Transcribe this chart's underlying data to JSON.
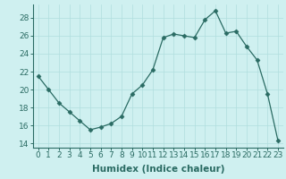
{
  "x": [
    0,
    1,
    2,
    3,
    4,
    5,
    6,
    7,
    8,
    9,
    10,
    11,
    12,
    13,
    14,
    15,
    16,
    17,
    18,
    19,
    20,
    21,
    22,
    23
  ],
  "y": [
    21.5,
    20.0,
    18.5,
    17.5,
    16.5,
    15.5,
    15.8,
    16.2,
    17.0,
    19.5,
    20.5,
    22.2,
    25.8,
    26.2,
    26.0,
    25.8,
    27.8,
    28.8,
    26.3,
    26.5,
    24.8,
    23.3,
    19.5,
    14.3
  ],
  "line_color": "#2a6b63",
  "marker": "D",
  "marker_size": 2.5,
  "bg_color": "#cff0f0",
  "grid_color": "#b0dede",
  "xlabel": "Humidex (Indice chaleur)",
  "ylim": [
    13.5,
    29.5
  ],
  "xlim": [
    -0.5,
    23.5
  ],
  "yticks": [
    14,
    16,
    18,
    20,
    22,
    24,
    26,
    28
  ],
  "xticks": [
    0,
    1,
    2,
    3,
    4,
    5,
    6,
    7,
    8,
    9,
    10,
    11,
    12,
    13,
    14,
    15,
    16,
    17,
    18,
    19,
    20,
    21,
    22,
    23
  ],
  "xtick_labels": [
    "0",
    "1",
    "2",
    "3",
    "4",
    "5",
    "6",
    "7",
    "8",
    "9",
    "10",
    "11",
    "12",
    "13",
    "14",
    "15",
    "16",
    "17",
    "18",
    "19",
    "20",
    "21",
    "22",
    "23"
  ],
  "font_size": 6.5,
  "xlabel_fontsize": 7.5
}
